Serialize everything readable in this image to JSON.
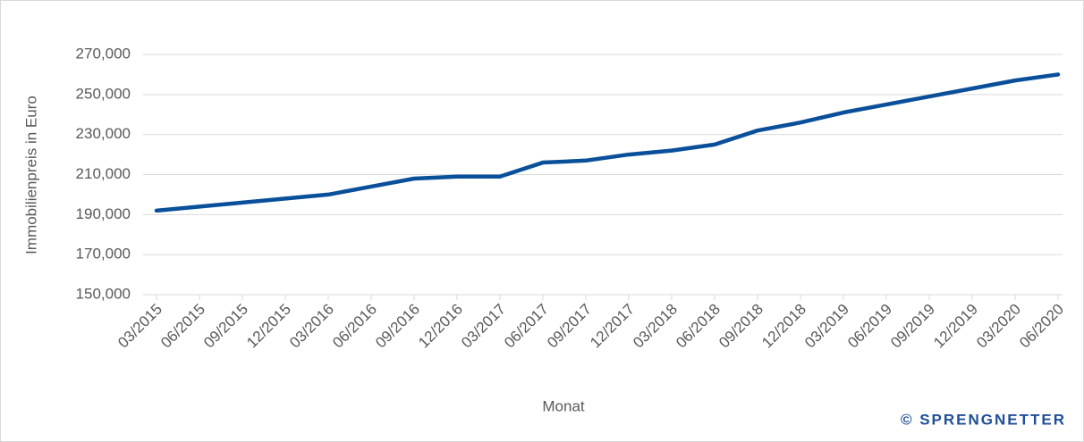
{
  "chart_data": {
    "type": "line",
    "y_label": "Immobilienpreis in Euro",
    "x_label": "Monat",
    "footer": "© SPRENGNETTER",
    "categories": [
      "03/2015",
      "06/2015",
      "09/2015",
      "12/2015",
      "03/2016",
      "06/2016",
      "09/2016",
      "12/2016",
      "03/2017",
      "06/2017",
      "09/2017",
      "12/2017",
      "03/2018",
      "06/2018",
      "09/2018",
      "12/2018",
      "03/2019",
      "06/2019",
      "09/2019",
      "12/2019",
      "03/2020",
      "06/2020"
    ],
    "series": [
      {
        "color": "#0a4f9a",
        "values": [
          192000,
          194000,
          196000,
          198000,
          200000,
          204000,
          208000,
          209000,
          209000,
          216000,
          217000,
          220000,
          222000,
          225000,
          232000,
          236000,
          241000,
          245000,
          249000,
          253000,
          257000,
          260000
        ]
      }
    ],
    "ylim": [
      150000,
      270000
    ],
    "yticks": [
      {
        "value": 150000,
        "label": "150,000"
      },
      {
        "value": 170000,
        "label": "170,000"
      },
      {
        "value": 190000,
        "label": "190,000"
      },
      {
        "value": 210000,
        "label": "210,000"
      },
      {
        "value": 230000,
        "label": "230,000"
      },
      {
        "value": 250000,
        "label": "250,000"
      },
      {
        "value": 270000,
        "label": "270,000"
      }
    ],
    "grid": true
  }
}
